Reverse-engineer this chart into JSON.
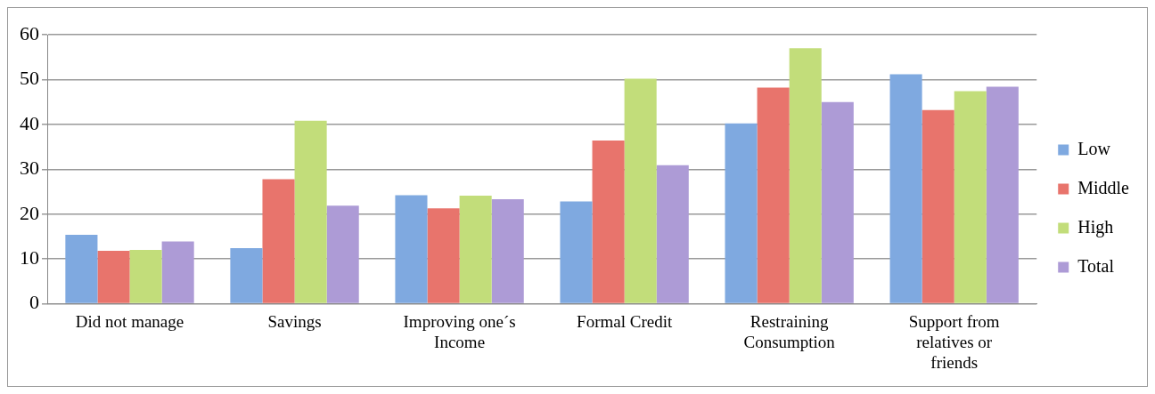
{
  "chart_data": {
    "type": "bar",
    "categories": [
      "Did not manage",
      "Savings",
      "Improving one´s Income",
      "Formal Credit",
      "Restraining Consumption",
      "Support from relatives or friends"
    ],
    "series": [
      {
        "name": "Low",
        "color": "#7fa9e0",
        "values": [
          15.4,
          12.4,
          24.2,
          22.8,
          40.2,
          51.2
        ]
      },
      {
        "name": "Middle",
        "color": "#e8746c",
        "values": [
          11.8,
          27.8,
          21.3,
          36.4,
          48.2,
          43.2
        ]
      },
      {
        "name": "High",
        "color": "#c2dd7a",
        "values": [
          12,
          40.8,
          24.1,
          50.2,
          57,
          47.4
        ]
      },
      {
        "name": "Total",
        "color": "#ad9bd6",
        "values": [
          13.9,
          21.9,
          23.3,
          30.9,
          45,
          48.4
        ]
      }
    ],
    "ylim": [
      0,
      60
    ],
    "yticks": [
      0,
      10,
      20,
      30,
      40,
      50,
      60
    ],
    "grid": "y",
    "legend": "right"
  }
}
